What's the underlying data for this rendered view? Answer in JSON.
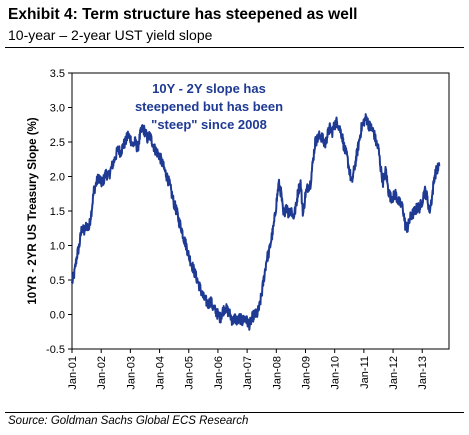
{
  "header": {
    "title": "Exhibit 4: Term structure has steepened as well",
    "subtitle": "10-year – 2-year UST yield slope"
  },
  "footer": {
    "source": "Source: Goldman Sachs Global ECS Research"
  },
  "colors": {
    "line": "#1f3a93",
    "annotation": "#1f3a93",
    "axis": "#000000"
  },
  "chart_data": {
    "type": "line",
    "title": "",
    "xlabel": "",
    "ylabel": "10YR - 2YR US Treasury Slope (%)",
    "ylim": [
      -0.5,
      3.5
    ],
    "xlim": [
      "2001-01",
      "2013-12"
    ],
    "grid": false,
    "y_ticks": [
      "-0.5",
      "0.0",
      "0.5",
      "1.0",
      "1.5",
      "2.0",
      "2.5",
      "3.0",
      "3.5"
    ],
    "x_ticks": [
      "Jan-01",
      "Jan-02",
      "Jan-03",
      "Jan-04",
      "Jan-05",
      "Jan-06",
      "Jan-07",
      "Jan-08",
      "Jan-09",
      "Jan-10",
      "Jan-11",
      "Jan-12",
      "Jan-13"
    ],
    "annotations": [
      {
        "text_lines": [
          "10Y - 2Y slope has",
          "steepened but has been",
          "\"steep\" since 2008"
        ]
      }
    ],
    "series": [
      {
        "x": [
          "2001-01",
          "2001-02",
          "2001-03",
          "2001-04",
          "2001-05",
          "2001-06",
          "2001-07",
          "2001-08",
          "2001-09",
          "2001-10",
          "2001-11",
          "2001-12",
          "2002-01",
          "2002-02",
          "2002-03",
          "2002-04",
          "2002-05",
          "2002-06",
          "2002-07",
          "2002-08",
          "2002-09",
          "2002-10",
          "2002-11",
          "2002-12",
          "2003-01",
          "2003-02",
          "2003-03",
          "2003-04",
          "2003-05",
          "2003-06",
          "2003-07",
          "2003-08",
          "2003-09",
          "2003-10",
          "2003-11",
          "2003-12",
          "2004-01",
          "2004-02",
          "2004-03",
          "2004-04",
          "2004-05",
          "2004-06",
          "2004-07",
          "2004-08",
          "2004-09",
          "2004-10",
          "2004-11",
          "2004-12",
          "2005-01",
          "2005-02",
          "2005-03",
          "2005-04",
          "2005-05",
          "2005-06",
          "2005-07",
          "2005-08",
          "2005-09",
          "2005-10",
          "2005-11",
          "2005-12",
          "2006-01",
          "2006-02",
          "2006-03",
          "2006-04",
          "2006-05",
          "2006-06",
          "2006-07",
          "2006-08",
          "2006-09",
          "2006-10",
          "2006-11",
          "2006-12",
          "2007-01",
          "2007-02",
          "2007-03",
          "2007-04",
          "2007-05",
          "2007-06",
          "2007-07",
          "2007-08",
          "2007-09",
          "2007-10",
          "2007-11",
          "2007-12",
          "2008-01",
          "2008-02",
          "2008-03",
          "2008-04",
          "2008-05",
          "2008-06",
          "2008-07",
          "2008-08",
          "2008-09",
          "2008-10",
          "2008-11",
          "2008-12",
          "2009-01",
          "2009-02",
          "2009-03",
          "2009-04",
          "2009-05",
          "2009-06",
          "2009-07",
          "2009-08",
          "2009-09",
          "2009-10",
          "2009-11",
          "2009-12",
          "2010-01",
          "2010-02",
          "2010-03",
          "2010-04",
          "2010-05",
          "2010-06",
          "2010-07",
          "2010-08",
          "2010-09",
          "2010-10",
          "2010-11",
          "2010-12",
          "2011-01",
          "2011-02",
          "2011-03",
          "2011-04",
          "2011-05",
          "2011-06",
          "2011-07",
          "2011-08",
          "2011-09",
          "2011-10",
          "2011-11",
          "2011-12",
          "2012-01",
          "2012-02",
          "2012-03",
          "2012-04",
          "2012-05",
          "2012-06",
          "2012-07",
          "2012-08",
          "2012-09",
          "2012-10",
          "2012-11",
          "2012-12",
          "2013-01",
          "2013-02",
          "2013-03",
          "2013-04",
          "2013-05",
          "2013-06",
          "2013-07",
          "2013-08"
        ],
        "values": [
          0.45,
          0.6,
          0.85,
          1.0,
          1.25,
          1.2,
          1.3,
          1.25,
          1.5,
          1.8,
          1.9,
          2.0,
          1.9,
          1.95,
          2.05,
          2.0,
          2.1,
          2.2,
          2.3,
          2.4,
          2.35,
          2.45,
          2.5,
          2.6,
          2.55,
          2.45,
          2.5,
          2.4,
          2.6,
          2.7,
          2.65,
          2.55,
          2.6,
          2.5,
          2.4,
          2.35,
          2.3,
          2.2,
          2.1,
          2.0,
          1.9,
          1.75,
          1.6,
          1.5,
          1.35,
          1.25,
          1.1,
          1.0,
          0.85,
          0.75,
          0.65,
          0.55,
          0.45,
          0.35,
          0.25,
          0.2,
          0.15,
          0.2,
          0.1,
          0.05,
          0.0,
          -0.05,
          0.05,
          0.1,
          0.05,
          0.0,
          -0.1,
          -0.05,
          -0.1,
          -0.05,
          -0.1,
          -0.05,
          -0.1,
          -0.15,
          -0.05,
          0.0,
          0.0,
          0.1,
          0.3,
          0.55,
          0.8,
          0.9,
          1.1,
          1.3,
          1.6,
          1.9,
          1.75,
          1.4,
          1.6,
          1.45,
          1.55,
          1.4,
          1.55,
          1.8,
          1.9,
          1.45,
          1.75,
          1.85,
          1.9,
          2.2,
          2.5,
          2.55,
          2.6,
          2.55,
          2.45,
          2.6,
          2.7,
          2.65,
          2.75,
          2.8,
          2.7,
          2.6,
          2.4,
          2.3,
          2.1,
          1.9,
          2.1,
          2.3,
          2.5,
          2.7,
          2.8,
          2.85,
          2.75,
          2.7,
          2.65,
          2.5,
          2.4,
          2.1,
          1.9,
          2.1,
          1.8,
          1.7,
          1.7,
          1.75,
          1.65,
          1.6,
          1.55,
          1.3,
          1.25,
          1.4,
          1.45,
          1.5,
          1.55,
          1.55,
          1.65,
          1.8,
          1.7,
          1.5,
          1.7,
          2.0,
          2.1,
          2.15
        ]
      }
    ]
  }
}
